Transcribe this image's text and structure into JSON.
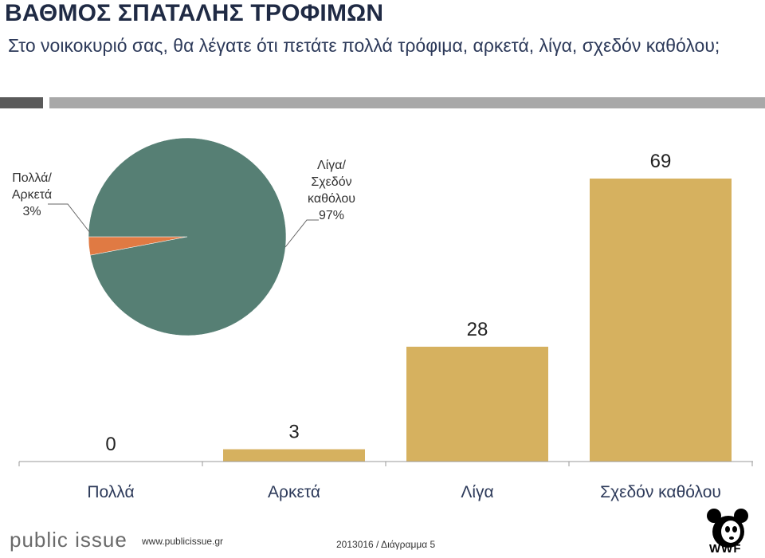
{
  "header": {
    "title": "ΒΑΘΜΟΣ ΣΠΑΤΑΛΗΣ ΤΡΟΦΙΜΩΝ",
    "subtitle": "Στο νοικοκυριό σας, θα λέγατε ότι πετάτε πολλά τρόφιμα, αρκετά, λίγα, σχεδόν καθόλου;"
  },
  "chart_data": [
    {
      "type": "pie",
      "slices": [
        {
          "label_lines": [
            "Πολλά/",
            "Αρκετά",
            "3%"
          ],
          "value": 3,
          "color": "#e07a43"
        },
        {
          "label_lines": [
            "Λίγα/",
            "Σχεδόν",
            "καθόλου",
            "97%"
          ],
          "value": 97,
          "color": "#567f74"
        }
      ]
    },
    {
      "type": "bar",
      "categories": [
        "Πολλά",
        "Αρκετά",
        "Λίγα",
        "Σχεδόν καθόλου"
      ],
      "values": [
        0,
        3,
        28,
        69
      ],
      "value_labels": [
        "0",
        "3",
        "28",
        "69"
      ],
      "color": "#d6b15f",
      "ylim": [
        0,
        69
      ]
    }
  ],
  "footer": {
    "brand": "public issue",
    "url": "www.publicissue.gr",
    "note": "2013016 / Διάγραμμα 5",
    "logo_text": "WWF"
  }
}
